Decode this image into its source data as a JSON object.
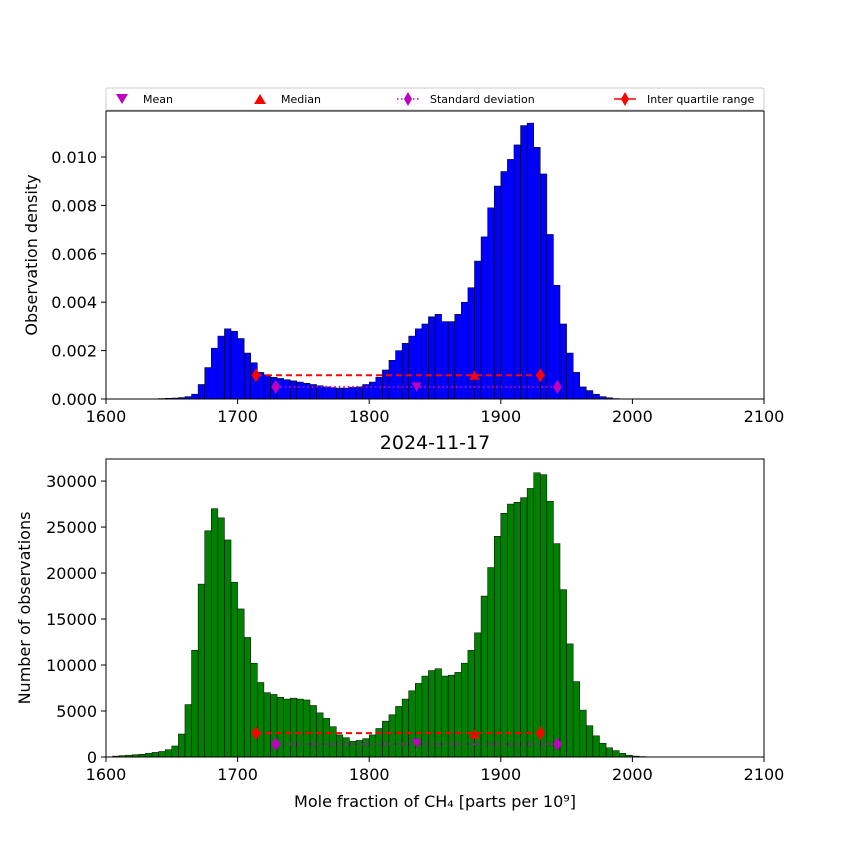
{
  "legend": {
    "items": [
      {
        "label": "Mean",
        "marker": "triangle-down",
        "color": "#bf00bf",
        "line": "none"
      },
      {
        "label": "Median",
        "marker": "triangle-up",
        "color": "#ff0000",
        "line": "none"
      },
      {
        "label": "Standard deviation",
        "marker": "thin-diamond",
        "color": "#bf00bf",
        "line": "dotted"
      },
      {
        "label": "Inter quartile range",
        "marker": "thin-diamond",
        "color": "#ff0000",
        "line": "solid"
      }
    ]
  },
  "chart_data": [
    {
      "type": "bar",
      "title": "",
      "xlabel": "",
      "ylabel": "Observation density",
      "xlim": [
        1600,
        2100
      ],
      "ylim": [
        0,
        0.0119
      ],
      "xticks": [
        "1600",
        "1700",
        "1800",
        "1900",
        "2000",
        "2100"
      ],
      "yticks": [
        "0.000",
        "0.002",
        "0.004",
        "0.006",
        "0.008",
        "0.010"
      ],
      "yticks_values": [
        0,
        0.002,
        0.004,
        0.006,
        0.008,
        0.01
      ],
      "bar_color": "#0000ff",
      "bin_start": 1625,
      "bin_width": 5,
      "values": [
        1e-05,
        1e-05,
        1e-05,
        2e-05,
        3e-05,
        4e-05,
        6e-05,
        0.0001,
        0.0002,
        0.0006,
        0.0013,
        0.0021,
        0.0026,
        0.0029,
        0.0028,
        0.0025,
        0.0019,
        0.0015,
        0.0011,
        0.001,
        0.0009,
        0.00085,
        0.0008,
        0.00075,
        0.0007,
        0.00065,
        0.0006,
        0.00055,
        0.0005,
        0.00047,
        0.00045,
        0.00045,
        0.00048,
        0.0005,
        0.0006,
        0.0007,
        0.0009,
        0.0012,
        0.0016,
        0.002,
        0.0023,
        0.0026,
        0.0029,
        0.0031,
        0.0034,
        0.0035,
        0.0032,
        0.0032,
        0.0035,
        0.004,
        0.0046,
        0.0057,
        0.0067,
        0.0079,
        0.0088,
        0.0094,
        0.0099,
        0.0105,
        0.0113,
        0.0114,
        0.0104,
        0.0093,
        0.0068,
        0.0047,
        0.0031,
        0.0019,
        0.0011,
        0.0005,
        0.00035,
        0.0002,
        0.0001,
        5e-05,
        2e-05,
        1e-05,
        1e-05,
        1e-05,
        1e-05,
        1e-05,
        1e-05
      ],
      "stats": {
        "mean": {
          "x": 1836,
          "y": 0.0005
        },
        "median": {
          "x": 1880,
          "y": 0.00098
        },
        "std": {
          "x": [
            1729,
            1943
          ],
          "y": 0.0005
        },
        "iqr": {
          "x": [
            1714,
            1930
          ],
          "y": 0.00098
        }
      }
    },
    {
      "type": "bar",
      "title": "2024-11-17",
      "xlabel": "Mole fraction of CH₄ [parts per 10⁹]",
      "ylabel": "Number of observations",
      "xlim": [
        1600,
        2100
      ],
      "ylim": [
        0,
        32400
      ],
      "xticks": [
        "1600",
        "1700",
        "1800",
        "1900",
        "2000",
        "2100"
      ],
      "yticks": [
        "0",
        "5000",
        "10000",
        "15000",
        "20000",
        "25000",
        "30000"
      ],
      "yticks_values": [
        0,
        5000,
        10000,
        15000,
        20000,
        25000,
        30000
      ],
      "bar_color": "#008000",
      "bin_start": 1605,
      "bin_width": 5,
      "values": [
        100,
        150,
        200,
        250,
        300,
        400,
        500,
        600,
        800,
        1200,
        2500,
        5700,
        11600,
        18800,
        24600,
        27000,
        26000,
        23600,
        19000,
        16100,
        13000,
        10200,
        8100,
        7000,
        6800,
        6500,
        6300,
        6400,
        6300,
        6200,
        5600,
        4800,
        4200,
        3300,
        2400,
        2100,
        1700,
        1800,
        2000,
        2400,
        3100,
        3900,
        4600,
        5500,
        6300,
        7200,
        8000,
        8800,
        9400,
        9600,
        8800,
        8900,
        9200,
        10200,
        11600,
        13500,
        17500,
        20600,
        24000,
        26500,
        27500,
        27700,
        28200,
        29200,
        30900,
        30700,
        27800,
        23200,
        18200,
        12300,
        8200,
        5100,
        3400,
        2300,
        1500,
        1000,
        700,
        400,
        200,
        100,
        50,
        20
      ],
      "stats": {
        "mean": {
          "x": 1836,
          "y": 1500
        },
        "median": {
          "x": 1880,
          "y": 2500
        },
        "std": {
          "x": [
            1729,
            1943
          ],
          "y": 1400
        },
        "iqr": {
          "x": [
            1714,
            1930
          ],
          "y": 2600
        }
      }
    }
  ]
}
